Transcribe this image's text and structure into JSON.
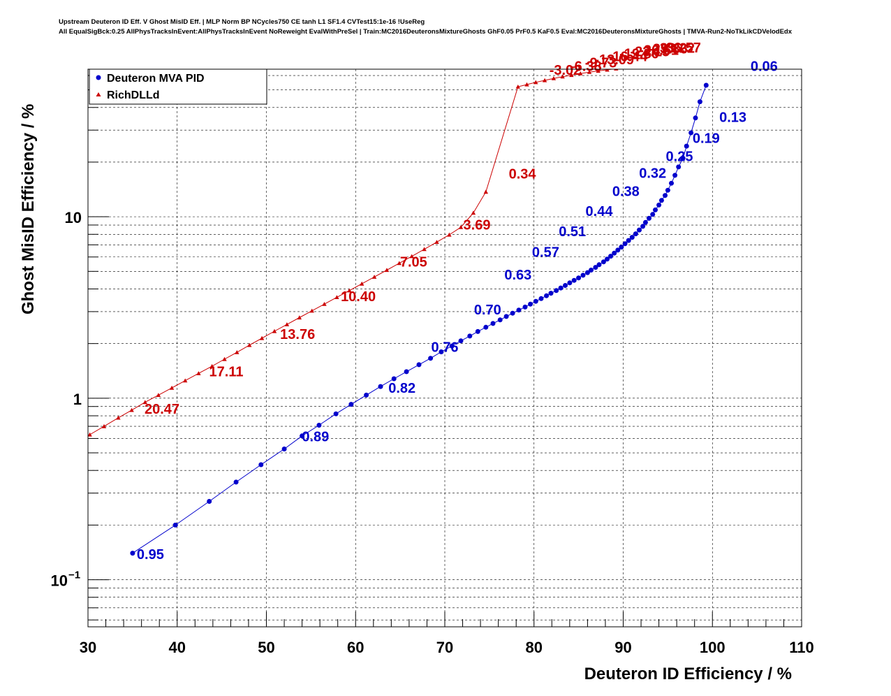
{
  "chart_data": {
    "type": "scatter",
    "title": "Upstream Deuteron ID Eff. V Ghost MisID Eff. | MLP Norm BP NCycles750 CE tanh L1 SF1.4 CVTest15:1e-16 !UseReg",
    "subtitle": "All EqualSigBck:0.25 AllPhysTracksInEvent:AllPhysTracksInEvent NoReweight EvalWithPreSel | Train:MC2016DeuteronsMixtureGhosts GhF0.05 PrF0.5 KaF0.5 Eval:MC2016DeuteronsMixtureGhosts | TMVA-Run2-NoTkLikCDVelodEdx",
    "xlabel": "Deuteron ID Efficiency / %",
    "ylabel": "Ghost MisID Efficiency / %",
    "xlim": [
      30,
      110
    ],
    "ylim": [
      0.055,
      65
    ],
    "yscale": "log",
    "grid": true,
    "legend_position": "top-left",
    "x_ticks": [
      "30",
      "40",
      "50",
      "60",
      "70",
      "80",
      "90",
      "100",
      "110"
    ],
    "y_ticks": [
      {
        "value": 0.1,
        "label": "10",
        "exp": "−1"
      },
      {
        "value": 1,
        "label": "1",
        "exp": ""
      },
      {
        "value": 10,
        "label": "10",
        "exp": ""
      }
    ],
    "series": [
      {
        "name": "Deuteron MVA PID",
        "color": "#0000cc",
        "marker": "circle",
        "x": [
          35.0,
          39.8,
          43.6,
          46.6,
          49.4,
          52.0,
          54.0,
          55.9,
          57.8,
          59.5,
          61.2,
          62.8,
          64.3,
          65.7,
          67.1,
          68.4,
          69.6,
          70.8,
          71.8,
          72.8,
          73.7,
          74.6,
          75.4,
          76.2,
          76.9,
          77.6,
          78.3,
          79.0,
          79.6,
          80.2,
          80.8,
          81.4,
          81.9,
          82.5,
          83.0,
          83.5,
          84.0,
          84.5,
          85.0,
          85.5,
          86.0,
          86.4,
          86.9,
          87.3,
          87.8,
          88.2,
          88.6,
          89.0,
          89.4,
          89.8,
          90.2,
          90.6,
          91.0,
          91.4,
          91.8,
          92.2,
          92.5,
          92.9,
          93.3,
          93.6,
          94.0,
          94.3,
          94.7,
          95.0,
          95.4,
          95.8,
          96.2,
          96.7,
          97.1,
          97.6,
          98.1,
          98.6,
          99.3
        ],
        "y": [
          0.14,
          0.2,
          0.27,
          0.345,
          0.43,
          0.525,
          0.62,
          0.71,
          0.82,
          0.925,
          1.04,
          1.16,
          1.28,
          1.4,
          1.53,
          1.66,
          1.8,
          1.94,
          2.07,
          2.2,
          2.33,
          2.46,
          2.58,
          2.7,
          2.82,
          2.94,
          3.06,
          3.18,
          3.3,
          3.42,
          3.54,
          3.67,
          3.79,
          3.92,
          4.05,
          4.18,
          4.32,
          4.46,
          4.6,
          4.76,
          4.92,
          5.08,
          5.26,
          5.44,
          5.64,
          5.84,
          6.06,
          6.3,
          6.55,
          6.8,
          7.1,
          7.4,
          7.7,
          8.05,
          8.45,
          8.85,
          9.3,
          9.8,
          10.3,
          10.9,
          11.6,
          12.3,
          13.1,
          14.0,
          15.3,
          16.9,
          18.8,
          21.0,
          24.5,
          29.0,
          35.0,
          43.0,
          53.0
        ],
        "labels": [
          {
            "x": 37.0,
            "y": 0.13,
            "text": "0.95"
          },
          {
            "x": 55.5,
            "y": 0.58,
            "text": "0.89"
          },
          {
            "x": 65.2,
            "y": 1.07,
            "text": "0.82"
          },
          {
            "x": 70.0,
            "y": 1.8,
            "text": "0.76"
          },
          {
            "x": 74.8,
            "y": 2.9,
            "text": "0.70"
          },
          {
            "x": 78.2,
            "y": 4.5,
            "text": "0.63"
          },
          {
            "x": 81.3,
            "y": 6.0,
            "text": "0.57"
          },
          {
            "x": 84.3,
            "y": 7.8,
            "text": "0.51"
          },
          {
            "x": 87.3,
            "y": 10.1,
            "text": "0.44"
          },
          {
            "x": 90.3,
            "y": 13.0,
            "text": "0.38"
          },
          {
            "x": 93.3,
            "y": 16.4,
            "text": "0.32"
          },
          {
            "x": 96.3,
            "y": 20.3,
            "text": "0.25"
          },
          {
            "x": 99.3,
            "y": 25.5,
            "text": "0.19"
          },
          {
            "x": 102.3,
            "y": 33.3,
            "text": "0.13"
          },
          {
            "x": 105.8,
            "y": 63.5,
            "text": "0.06"
          }
        ]
      },
      {
        "name": "RichDLLd",
        "color": "#cc0000",
        "marker": "triangle",
        "x": [
          30.2,
          31.8,
          33.4,
          34.9,
          36.4,
          37.9,
          39.4,
          40.9,
          42.4,
          43.9,
          45.3,
          46.7,
          48.1,
          49.5,
          50.9,
          52.3,
          53.7,
          55.1,
          56.5,
          57.9,
          59.3,
          60.7,
          62.1,
          63.5,
          64.9,
          66.3,
          67.7,
          69.1,
          70.5,
          71.8,
          73.2,
          74.6,
          78.2,
          79.2,
          80.2,
          81.2,
          82.2,
          83.2,
          84.2,
          85.2,
          86.2,
          87.2,
          88.2,
          89.2,
          90.2,
          91.2,
          92.2,
          93.2,
          94.2,
          95.2
        ],
        "y": [
          0.63,
          0.7,
          0.78,
          0.86,
          0.95,
          1.04,
          1.14,
          1.25,
          1.37,
          1.5,
          1.64,
          1.79,
          1.96,
          2.14,
          2.34,
          2.55,
          2.78,
          3.03,
          3.3,
          3.6,
          3.92,
          4.27,
          4.66,
          5.08,
          5.54,
          6.05,
          6.62,
          7.25,
          7.95,
          8.75,
          10.5,
          13.7,
          52.0,
          53.5,
          55.0,
          56.4,
          57.8,
          59.1,
          60.3,
          61.5,
          62.6,
          63.6,
          64.5,
          65.4,
          66.2,
          67.0,
          67.8,
          68.5,
          69.2,
          69.9
        ],
        "labels": [
          {
            "x": 38.3,
            "y": 0.82,
            "text": "20.47"
          },
          {
            "x": 45.5,
            "y": 1.32,
            "text": "17.11"
          },
          {
            "x": 53.5,
            "y": 2.12,
            "text": "13.76"
          },
          {
            "x": 60.3,
            "y": 3.42,
            "text": "10.40"
          },
          {
            "x": 66.5,
            "y": 5.3,
            "text": "7.05"
          },
          {
            "x": 73.6,
            "y": 8.5,
            "text": "3.69"
          },
          {
            "x": 78.7,
            "y": 16.2,
            "text": "0.34"
          },
          {
            "x": 83.5,
            "y": 60.5,
            "text": "-3.02"
          },
          {
            "x": 85.8,
            "y": 63.5,
            "text": "-6.38"
          },
          {
            "x": 87.5,
            "y": 66.5,
            "text": "-9.73"
          },
          {
            "x": 89.0,
            "y": 69.2,
            "text": "-13.09"
          },
          {
            "x": 90.5,
            "y": 72.0,
            "text": "-16.44"
          },
          {
            "x": 91.8,
            "y": 74.5,
            "text": "-19.80"
          },
          {
            "x": 93.0,
            "y": 76.5,
            "text": "-23.15"
          },
          {
            "x": 94.0,
            "y": 78.0,
            "text": "-26.51"
          },
          {
            "x": 95.0,
            "y": 79.2,
            "text": "-29.86"
          },
          {
            "x": 95.8,
            "y": 80.0,
            "text": "-33.22"
          },
          {
            "x": 96.5,
            "y": 80.5,
            "text": "-36.57"
          }
        ]
      }
    ]
  }
}
